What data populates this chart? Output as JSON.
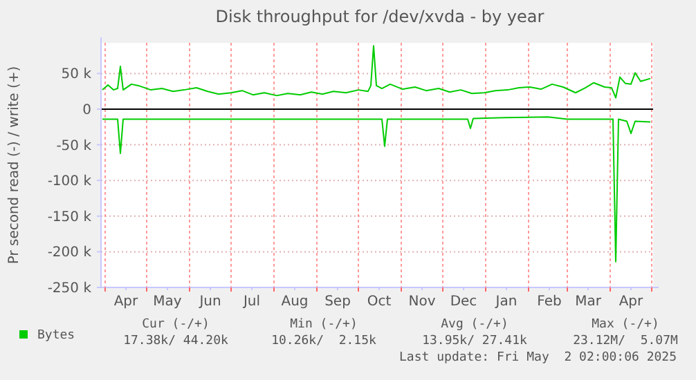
{
  "chart_data": {
    "type": "line",
    "title": "Disk throughput for /dev/xvda - by year",
    "ylabel": "Pr second read (-) / write (+)",
    "xlim": [
      "2024-03-29",
      "2025-05-02"
    ],
    "xticks": [
      {
        "value": "2024-04-01",
        "label": null
      },
      {
        "value": "2024-04-16",
        "label": "Apr"
      },
      {
        "value": "2024-05-01",
        "label": null
      },
      {
        "value": "2024-05-16",
        "label": "May"
      },
      {
        "value": "2024-06-01",
        "label": null
      },
      {
        "value": "2024-06-16",
        "label": "Jun"
      },
      {
        "value": "2024-07-01",
        "label": null
      },
      {
        "value": "2024-07-16",
        "label": "Jul"
      },
      {
        "value": "2024-08-01",
        "label": null
      },
      {
        "value": "2024-08-16",
        "label": "Aug"
      },
      {
        "value": "2024-09-01",
        "label": null
      },
      {
        "value": "2024-09-16",
        "label": "Sep"
      },
      {
        "value": "2024-10-01",
        "label": null
      },
      {
        "value": "2024-10-16",
        "label": "Oct"
      },
      {
        "value": "2024-11-01",
        "label": null
      },
      {
        "value": "2024-11-16",
        "label": "Nov"
      },
      {
        "value": "2024-12-01",
        "label": null
      },
      {
        "value": "2024-12-16",
        "label": "Dec"
      },
      {
        "value": "2025-01-01",
        "label": null
      },
      {
        "value": "2025-01-16",
        "label": "Jan"
      },
      {
        "value": "2025-02-01",
        "label": null
      },
      {
        "value": "2025-02-16",
        "label": "Feb"
      },
      {
        "value": "2025-03-01",
        "label": null
      },
      {
        "value": "2025-03-16",
        "label": "Mar"
      },
      {
        "value": "2025-04-01",
        "label": null
      },
      {
        "value": "2025-04-16",
        "label": "Apr"
      },
      {
        "value": "2025-05-01",
        "label": null
      }
    ],
    "ylim": [
      -250000,
      93000
    ],
    "yticks": [
      {
        "value": -250000,
        "label": "-250 k"
      },
      {
        "value": -200000,
        "label": "-200 k"
      },
      {
        "value": -150000,
        "label": "-150 k"
      },
      {
        "value": -100000,
        "label": "-100 k"
      },
      {
        "value": -50000,
        "label": "-50 k"
      },
      0,
      {
        "value": 50000,
        "label": "50 k"
      }
    ],
    "grid": true,
    "legend": "bottom left",
    "marker": "none",
    "line_style": "solid",
    "ref_lines": [
      {
        "axis": "y",
        "value": 0,
        "color": "#000000"
      }
    ],
    "series": [
      {
        "name": "Bytes",
        "color": "#00cc00",
        "x": [
          "2024-03-30",
          "2024-04-03",
          "2024-04-07",
          "2024-04-10",
          "2024-04-12",
          "2024-04-14",
          "2024-04-20",
          "2024-04-25",
          "2024-05-04",
          "2024-05-12",
          "2024-05-20",
          "2024-05-28",
          "2024-06-06",
          "2024-06-14",
          "2024-06-22",
          "2024-07-01",
          "2024-07-09",
          "2024-07-17",
          "2024-07-25",
          "2024-08-03",
          "2024-08-11",
          "2024-08-20",
          "2024-08-28",
          "2024-09-05",
          "2024-09-13",
          "2024-09-22",
          "2024-10-01",
          "2024-10-08",
          "2024-10-10",
          "2024-10-12",
          "2024-10-14",
          "2024-10-18",
          "2024-10-24",
          "2024-11-02",
          "2024-11-11",
          "2024-11-19",
          "2024-11-28",
          "2024-12-06",
          "2024-12-14",
          "2024-12-22",
          "2024-12-31",
          "2025-01-08",
          "2025-01-17",
          "2025-01-25",
          "2025-02-02",
          "2025-02-10",
          "2025-02-18",
          "2025-02-26",
          "2025-03-07",
          "2025-03-14",
          "2025-03-20",
          "2025-03-28",
          "2025-04-02",
          "2025-04-05",
          "2025-04-08",
          "2025-04-12",
          "2025-04-16",
          "2025-04-19",
          "2025-04-23",
          "2025-04-30"
        ],
        "values": [
          27000,
          34000,
          27000,
          29000,
          60000,
          27000,
          35000,
          33000,
          27000,
          29000,
          25000,
          27000,
          30000,
          25000,
          21000,
          23000,
          26000,
          20000,
          23000,
          19000,
          22000,
          20000,
          24000,
          21000,
          25000,
          23000,
          27000,
          25000,
          33000,
          89000,
          33000,
          29000,
          35000,
          28000,
          31000,
          26000,
          29000,
          24000,
          27000,
          22000,
          23000,
          26000,
          27000,
          30000,
          31000,
          28000,
          35000,
          31000,
          23000,
          30000,
          37000,
          31000,
          30000,
          16000,
          45000,
          36000,
          35000,
          51000,
          39000,
          43000
        ]
      },
      {
        "color": "#00cc00",
        "x": [
          "2024-03-30",
          "2024-04-10",
          "2024-04-12",
          "2024-04-14",
          "2024-10-18",
          "2024-10-20",
          "2024-10-22",
          "2024-12-19",
          "2024-12-21",
          "2024-12-23",
          "2025-01-15",
          "2025-02-15",
          "2025-03-01",
          "2025-04-03",
          "2025-04-05",
          "2025-04-07",
          "2025-04-13",
          "2025-04-16",
          "2025-04-19",
          "2025-04-30"
        ],
        "values": [
          -14000,
          -14000,
          -62000,
          -14000,
          -14000,
          -52000,
          -14000,
          -14000,
          -27000,
          -13000,
          -12000,
          -11000,
          -14000,
          -14000,
          -214000,
          -14000,
          -17000,
          -34000,
          -17000,
          -18000
        ]
      }
    ],
    "annotations": [
      "Cur (-/+)",
      "Min (-/+)",
      "Avg (-/+)",
      "Max (-/+)",
      "17.38k/ 44.20k",
      "10.26k/  2.15k",
      "13.95k/ 27.41k",
      "23.12M/  5.07M",
      "Last update: Fri May  2 02:00:06 2025"
    ]
  }
}
